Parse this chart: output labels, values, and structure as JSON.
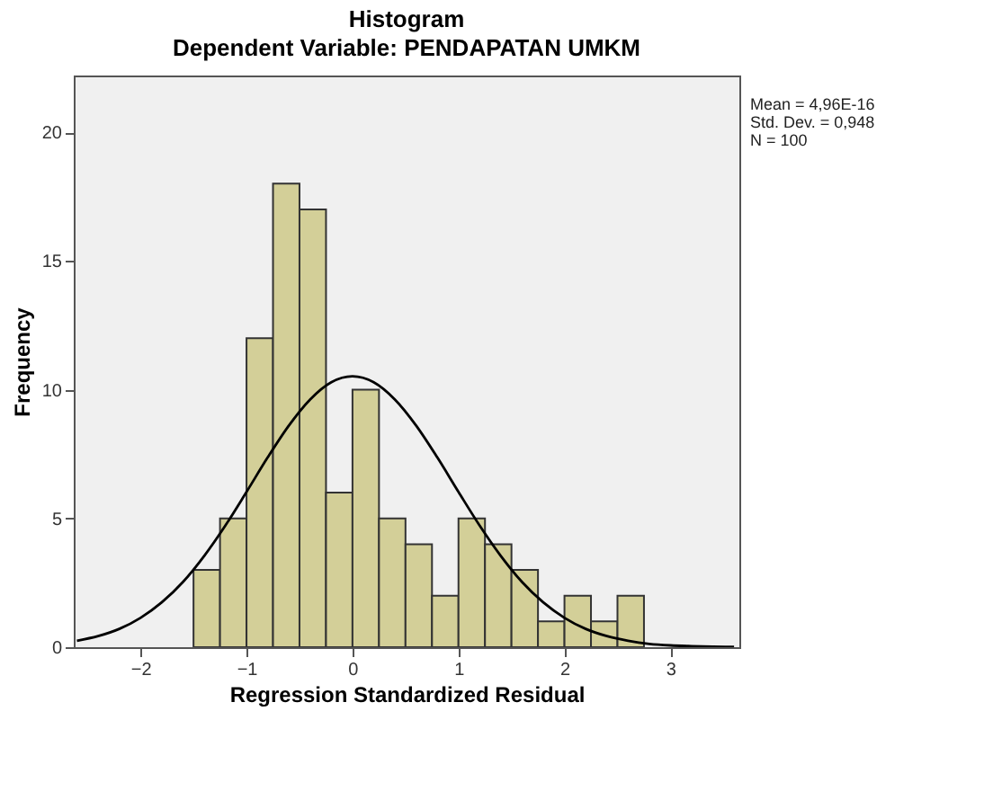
{
  "chart_data": {
    "type": "histogram",
    "title": "Histogram",
    "subtitle": "Dependent Variable: PENDAPATAN UMKM",
    "xlabel": "Regression Standardized Residual",
    "ylabel": "Frequency",
    "bins": [
      -1.5,
      -1.25,
      -1.0,
      -0.75,
      -0.5,
      -0.25,
      0.0,
      0.25,
      0.5,
      0.75,
      1.0,
      1.25,
      1.5,
      1.75,
      2.0,
      2.25,
      2.5,
      2.75
    ],
    "values": [
      3,
      5,
      12,
      18,
      17,
      6,
      10,
      5,
      4,
      2,
      5,
      4,
      3,
      1,
      2,
      1,
      2
    ],
    "color": "#d3cf98",
    "series": [
      {
        "type": "line",
        "color": "#000000",
        "x": [
          -2.6,
          -2.4,
          -2.2,
          -2.0,
          -1.8,
          -1.6,
          -1.4,
          -1.2,
          -1.0,
          -0.8,
          -0.6,
          -0.4,
          -0.2,
          0.0,
          0.2,
          0.4,
          0.6,
          0.8,
          1.0,
          1.2,
          1.4,
          1.6,
          1.8,
          2.0,
          2.2,
          2.4,
          2.6,
          2.8,
          3.0,
          3.2,
          3.4,
          3.6
        ],
        "values": [
          0.25,
          0.43,
          0.71,
          1.14,
          1.74,
          2.53,
          3.54,
          4.72,
          6.03,
          7.37,
          8.61,
          9.62,
          10.29,
          10.52,
          10.29,
          9.62,
          8.61,
          7.37,
          6.03,
          4.72,
          3.54,
          2.53,
          1.74,
          1.14,
          0.71,
          0.43,
          0.25,
          0.13,
          0.07,
          0.04,
          0.02,
          0.01
        ]
      }
    ],
    "xlim": [
      -2.63,
      3.65
    ],
    "ylim": [
      0,
      22.2
    ],
    "xticks": [
      -2,
      -1,
      0,
      1,
      2,
      3
    ],
    "yticks": [
      0,
      5,
      10,
      15,
      20
    ],
    "annotations": [
      "Mean = 4,96E-16",
      "Std. Dev. = 0,948",
      "N = 100"
    ]
  }
}
